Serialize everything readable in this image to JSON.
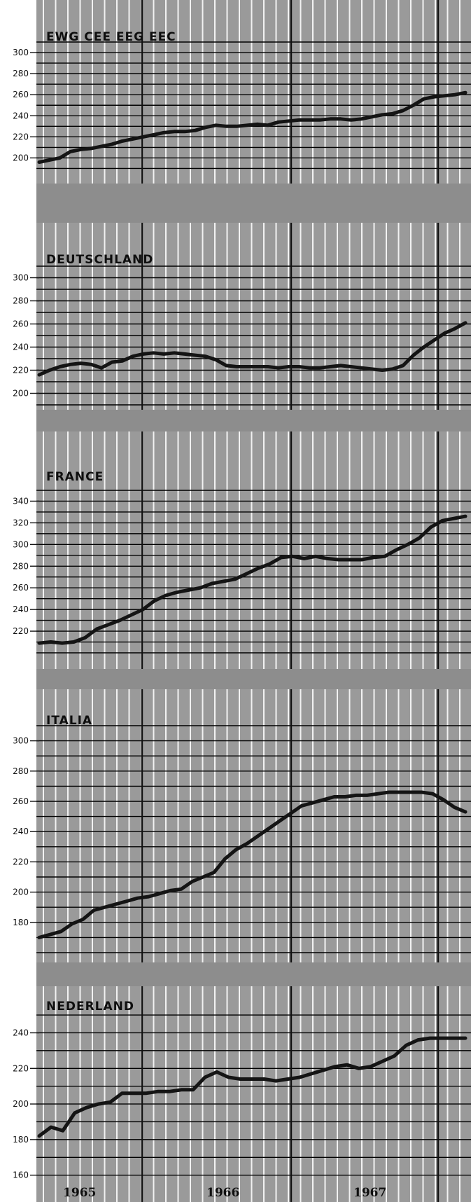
{
  "colors": {
    "panel_background": "#9a9a9a",
    "separator_band": "#8d8d8d",
    "grid_line": "#f2f2f2",
    "year_line": "#111111",
    "series_line": "#141414"
  },
  "chart_data": [
    {
      "type": "line",
      "title": "EWG CEE EEG EEC",
      "ylim": [
        185,
        310
      ],
      "yticks": [
        200,
        220,
        240,
        260,
        280,
        300
      ],
      "ytick_labels": [
        "200",
        "220",
        "240",
        "260",
        "280",
        "300"
      ],
      "series": [
        {
          "values": [
            196,
            198,
            200,
            206,
            208,
            209,
            211,
            213,
            216,
            218,
            220,
            222,
            224,
            225,
            225,
            226,
            229,
            231,
            230,
            230,
            231,
            232,
            231,
            234,
            235,
            236,
            236,
            236,
            237,
            237,
            236,
            237,
            239,
            241,
            242,
            245,
            250,
            256,
            258,
            259,
            260,
            262
          ]
        }
      ],
      "grid": true
    },
    {
      "type": "line",
      "title": "DEUTSCHLAND",
      "ylim": [
        190,
        310
      ],
      "yticks": [
        200,
        220,
        240,
        260,
        280,
        300
      ],
      "ytick_labels": [
        "200",
        "220",
        "240",
        "260",
        "280",
        "300"
      ],
      "series": [
        {
          "values": [
            216,
            220,
            223,
            225,
            226,
            225,
            222,
            227,
            228,
            232,
            234,
            235,
            234,
            235,
            234,
            233,
            232,
            229,
            224,
            223,
            223,
            223,
            223,
            222,
            223,
            223,
            222,
            222,
            223,
            224,
            223,
            222,
            221,
            220,
            221,
            224,
            233,
            240,
            246,
            252,
            256,
            261
          ]
        }
      ],
      "grid": true
    },
    {
      "type": "line",
      "title": "FRANCE",
      "ylim": [
        200,
        350
      ],
      "yticks": [
        220,
        240,
        260,
        280,
        300,
        320,
        340
      ],
      "ytick_labels": [
        "220",
        "240",
        "260",
        "280",
        "300",
        "320",
        "340"
      ],
      "series": [
        {
          "values": [
            209,
            210,
            209,
            210,
            214,
            222,
            226,
            230,
            235,
            240,
            248,
            253,
            256,
            258,
            260,
            264,
            266,
            268,
            273,
            278,
            282,
            288,
            289,
            287,
            289,
            287,
            286,
            286,
            286,
            288,
            289,
            295,
            300,
            306,
            316,
            322,
            324,
            326
          ]
        }
      ],
      "grid": true
    },
    {
      "type": "line",
      "title": "ITALIA",
      "ylim": [
        160,
        310
      ],
      "yticks": [
        180,
        200,
        220,
        240,
        260,
        280,
        300
      ],
      "ytick_labels": [
        "180",
        "200",
        "220",
        "240",
        "260",
        "280",
        "300"
      ],
      "series": [
        {
          "values": [
            170,
            172,
            174,
            179,
            182,
            188,
            190,
            192,
            194,
            196,
            197,
            199,
            201,
            202,
            207,
            210,
            213,
            222,
            228,
            232,
            237,
            242,
            247,
            252,
            257,
            259,
            261,
            263,
            263,
            264,
            264,
            265,
            266,
            266,
            266,
            266,
            265,
            261,
            256,
            253
          ]
        }
      ],
      "grid": true
    },
    {
      "type": "line",
      "title": "NEDERLAND",
      "ylim": [
        152,
        252
      ],
      "yticks": [
        160,
        180,
        200,
        220,
        240
      ],
      "ytick_labels": [
        "160",
        "180",
        "200",
        "220",
        "240"
      ],
      "series": [
        {
          "values": [
            182,
            187,
            185,
            195,
            198,
            200,
            201,
            206,
            206,
            206,
            207,
            207,
            208,
            208,
            215,
            218,
            215,
            214,
            214,
            214,
            213,
            214,
            215,
            217,
            219,
            221,
            222,
            220,
            221,
            224,
            227,
            233,
            236,
            237,
            237,
            237,
            237
          ]
        }
      ],
      "grid": true
    }
  ],
  "x_axis": {
    "year_labels": [
      "1965",
      "1966",
      "1967"
    ]
  }
}
